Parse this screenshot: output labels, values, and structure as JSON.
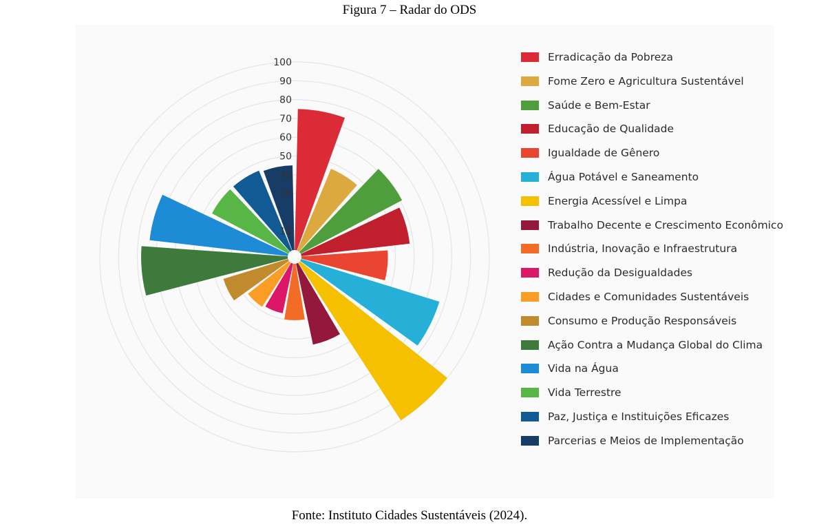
{
  "figure": {
    "title": "Figura 7 – Radar do ODS",
    "source": "Fonte: Instituto Cidades Sustentáveis (2024)."
  },
  "chart_data": {
    "type": "polar-bar",
    "rmax": 100,
    "grid": true,
    "radial_ticks": [
      "10",
      "30",
      "40",
      "50",
      "60",
      "70",
      "80",
      "90",
      "100"
    ],
    "radial_tick_values": [
      10,
      30,
      40,
      50,
      60,
      70,
      80,
      90,
      100
    ],
    "legend_position": "right",
    "categories": [
      "Erradicação da Pobreza",
      "Fome Zero e Agricultura Sustentável",
      "Saúde e Bem-Estar",
      "Educação de Qualidade",
      "Igualdade de Gênero",
      "Água Potável e Saneamento",
      "Energia Acessível e Limpa",
      "Trabalho Decente e Crescimento Econômico",
      "Indústria, Inovação e Infraestrutura",
      "Redução da Desigualdades",
      "Cidades e Comunidades Sustentáveis",
      "Consumo e Produção Responsáveis",
      "Ação Contra a Mudança Global do Clima",
      "Vida na Água",
      "Vida Terrestre",
      "Paz, Justiça e Instituições Eficazes",
      "Parcerias e Meios de Implementação"
    ],
    "values": [
      75,
      47,
      61,
      58,
      46,
      77,
      100,
      44,
      30,
      27,
      28,
      36,
      78,
      74,
      46,
      46,
      45
    ],
    "colors": [
      "#db2b37",
      "#dba93f",
      "#4e9e3d",
      "#c01f2d",
      "#ea4530",
      "#26b0d8",
      "#f5c000",
      "#93183c",
      "#f36c25",
      "#dd1767",
      "#fa9d25",
      "#c18a2d",
      "#3e7a3b",
      "#1d8bd5",
      "#57b646",
      "#115a93",
      "#173c66"
    ]
  }
}
